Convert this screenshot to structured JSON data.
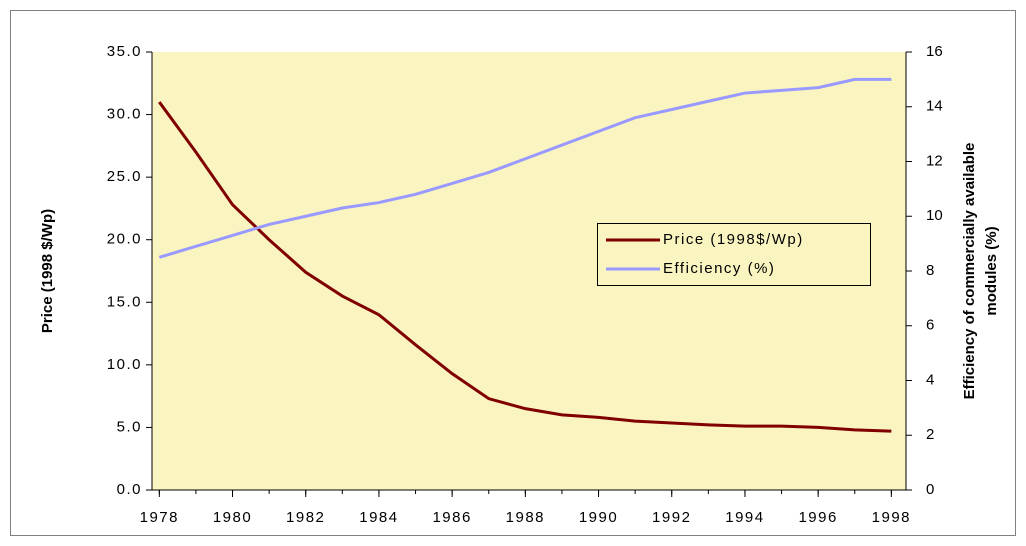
{
  "chart_data": {
    "type": "line",
    "ylabel": "Price (1998 $/Wp)",
    "y2label": [
      "Efficiency of commercially available",
      "modules (%)"
    ],
    "x": [
      1978,
      1979,
      1980,
      1981,
      1982,
      1983,
      1984,
      1985,
      1986,
      1987,
      1988,
      1989,
      1990,
      1991,
      1992,
      1993,
      1994,
      1995,
      1996,
      1997,
      1998
    ],
    "xlim": [
      1977.8,
      1998.4
    ],
    "xticks": [
      1978,
      1980,
      1982,
      1984,
      1986,
      1988,
      1990,
      1992,
      1994,
      1996,
      1998
    ],
    "ylim": [
      0,
      35
    ],
    "yticks": [
      {
        "value": 0,
        "label": "0.0"
      },
      {
        "value": 5,
        "label": "5.0"
      },
      {
        "value": 10,
        "label": "10.0"
      },
      {
        "value": 15,
        "label": "15.0"
      },
      {
        "value": 20,
        "label": "20.0"
      },
      {
        "value": 25,
        "label": "25.0"
      },
      {
        "value": 30,
        "label": "30.0"
      },
      {
        "value": 35,
        "label": "35.0"
      }
    ],
    "y2lim": [
      0,
      16
    ],
    "y2ticks": [
      0,
      2,
      4,
      6,
      8,
      10,
      12,
      14,
      16
    ],
    "series": [
      {
        "name": "Price (1998$/Wp)",
        "color": "#800000",
        "values": [
          31.0,
          27.0,
          22.8,
          20.0,
          17.4,
          15.5,
          14.0,
          11.6,
          9.3,
          7.3,
          6.5,
          6.0,
          5.8,
          5.5,
          5.35,
          5.2,
          5.1,
          5.1,
          5.0,
          4.8,
          4.7
        ]
      },
      {
        "name": "Efficiency (%)",
        "color": "#9999ff",
        "axis": "y2",
        "values": [
          8.5,
          8.9,
          9.3,
          9.7,
          10.0,
          10.3,
          10.5,
          10.8,
          11.2,
          11.6,
          12.1,
          12.6,
          13.1,
          13.6,
          13.9,
          14.2,
          14.5,
          14.6,
          14.7,
          15.0,
          15.0
        ]
      }
    ]
  }
}
